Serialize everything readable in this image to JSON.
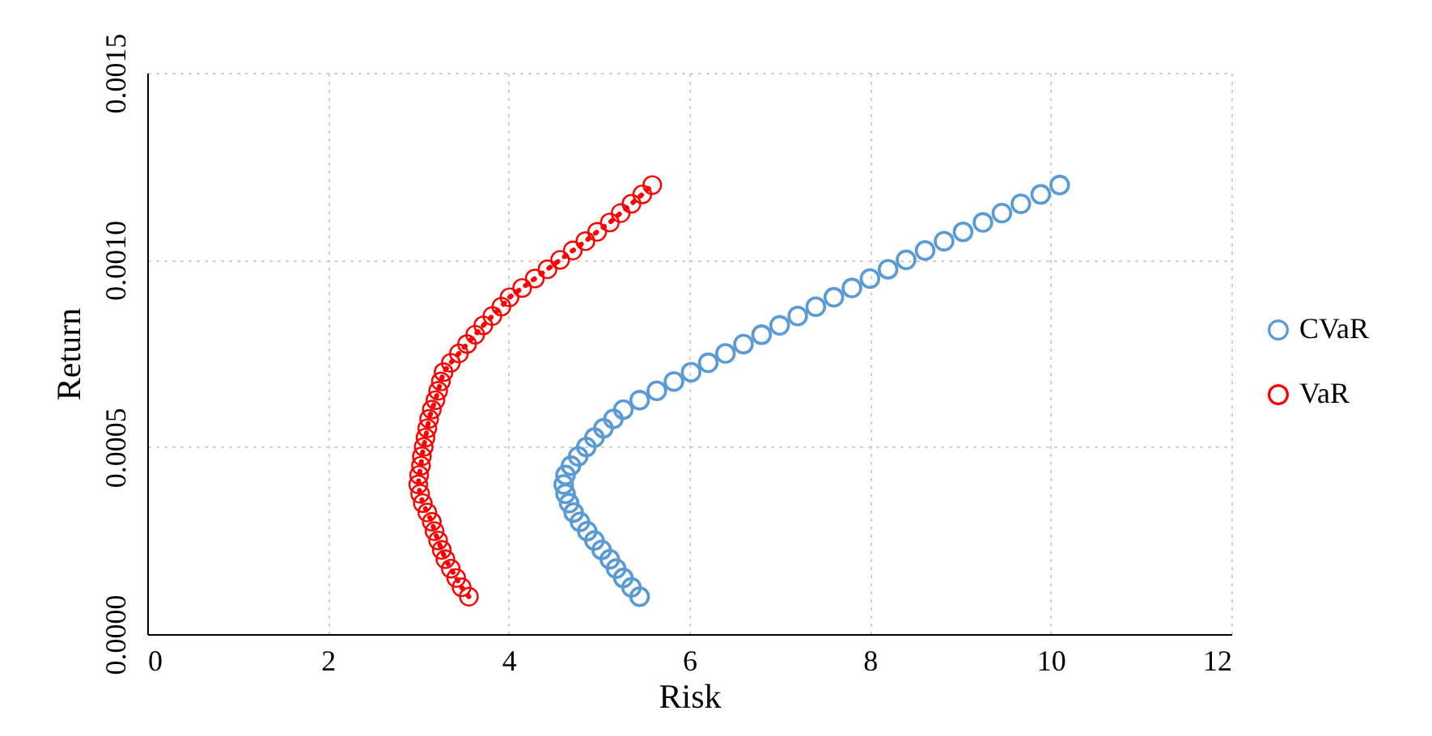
{
  "chart_data": {
    "type": "scatter",
    "xlabel": "Risk",
    "ylabel": "Return",
    "xlim": [
      0,
      12
    ],
    "xticks": [
      0,
      2,
      4,
      6,
      8,
      10,
      12
    ],
    "ylim": [
      0,
      0.0015
    ],
    "yticks": [
      {
        "value": 0,
        "label": "0.0000"
      },
      {
        "value": 0.0005,
        "label": "0.0005"
      },
      {
        "value": 0.001,
        "label": "0.0010"
      },
      {
        "value": 0.0015,
        "label": "0.0015"
      }
    ],
    "grid": true,
    "legend": "right",
    "series": [
      {
        "name": "CVaR",
        "color": "#5b9bd5",
        "marker": "circle",
        "x": [
          5.45,
          5.36,
          5.27,
          5.19,
          5.12,
          5.03,
          4.95,
          4.87,
          4.79,
          4.72,
          4.67,
          4.63,
          4.61,
          4.63,
          4.69,
          4.77,
          4.86,
          4.95,
          5.05,
          5.16,
          5.27,
          5.45,
          5.64,
          5.83,
          6.02,
          6.21,
          6.4,
          6.6,
          6.8,
          7.0,
          7.2,
          7.4,
          7.6,
          7.8,
          8.0,
          8.2,
          8.4,
          8.61,
          8.82,
          9.03,
          9.25,
          9.46,
          9.67,
          9.89,
          10.1
        ],
        "values": [
          0.0001,
          0.000125,
          0.00015,
          0.000175,
          0.0002,
          0.000225,
          0.00025,
          0.000275,
          0.0003,
          0.000325,
          0.00035,
          0.000375,
          0.0004,
          0.000425,
          0.00045,
          0.000475,
          0.0005,
          0.000525,
          0.00055,
          0.000575,
          0.0006,
          0.000625,
          0.00065,
          0.000675,
          0.0007,
          0.000725,
          0.00075,
          0.000775,
          0.0008,
          0.000825,
          0.00085,
          0.000875,
          0.0009,
          0.000925,
          0.00095,
          0.000975,
          0.001,
          0.001025,
          0.00105,
          0.001075,
          0.0011,
          0.001125,
          0.00115,
          0.001175,
          0.0012
        ]
      },
      {
        "name": "VaR",
        "type": "line",
        "color": "#ff0000",
        "marker": "circle",
        "line_style": "dotted",
        "x": [
          3.56,
          3.48,
          3.42,
          3.36,
          3.3,
          3.26,
          3.22,
          3.18,
          3.15,
          3.1,
          3.05,
          3.02,
          3.0,
          3.01,
          3.03,
          3.04,
          3.06,
          3.08,
          3.1,
          3.12,
          3.15,
          3.19,
          3.22,
          3.25,
          3.28,
          3.36,
          3.45,
          3.54,
          3.63,
          3.72,
          3.82,
          3.92,
          4.01,
          4.15,
          4.29,
          4.43,
          4.57,
          4.71,
          4.85,
          4.98,
          5.12,
          5.24,
          5.36,
          5.48,
          5.59
        ],
        "values": [
          0.0001,
          0.000125,
          0.00015,
          0.000175,
          0.0002,
          0.000225,
          0.00025,
          0.000275,
          0.0003,
          0.000325,
          0.00035,
          0.000375,
          0.0004,
          0.000425,
          0.00045,
          0.000475,
          0.0005,
          0.000525,
          0.00055,
          0.000575,
          0.0006,
          0.000625,
          0.00065,
          0.000675,
          0.0007,
          0.000725,
          0.00075,
          0.000775,
          0.0008,
          0.000825,
          0.00085,
          0.000875,
          0.0009,
          0.000925,
          0.00095,
          0.000975,
          0.001,
          0.001025,
          0.00105,
          0.001075,
          0.0011,
          0.001125,
          0.00115,
          0.001175,
          0.0012
        ]
      }
    ]
  }
}
